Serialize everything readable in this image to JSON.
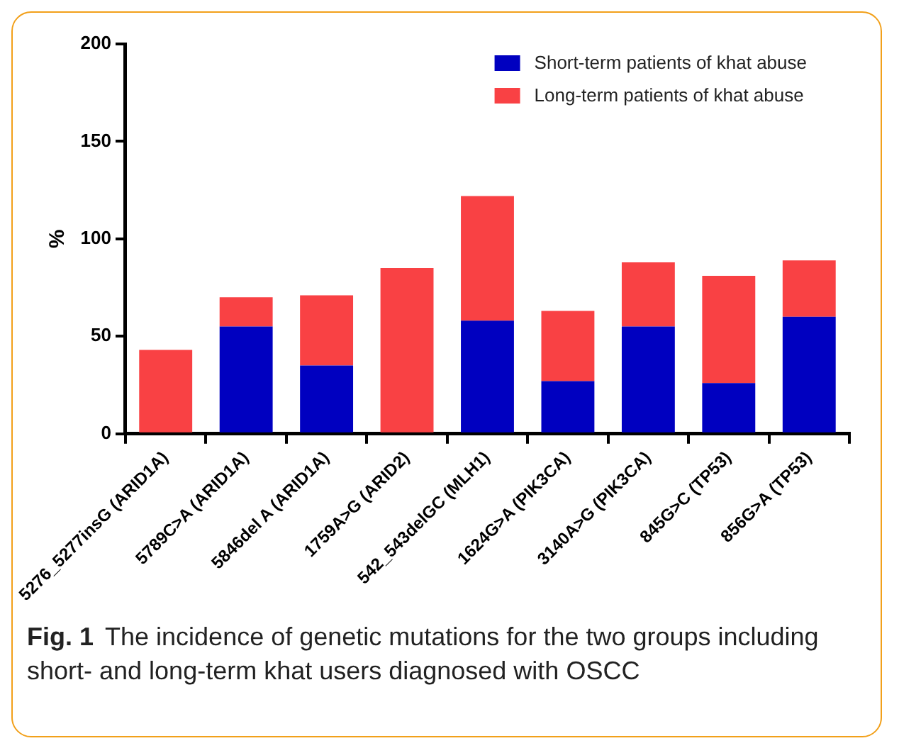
{
  "chart_data": {
    "type": "bar",
    "stacked": true,
    "ylabel": "%",
    "categories": [
      "5276_5277insG (ARID1A)",
      "5789C>A (ARID1A)",
      "5846del A (ARID1A)",
      "1759A>G (ARID2)",
      "542_543delGC (MLH1)",
      "1624G>A (PIK3CA)",
      "3140A>G (PIK3CA)",
      "845G>C (TP53)",
      "856G>A (TP53)"
    ],
    "series": [
      {
        "name": "Short-term patients of khat abuse",
        "color": "#0000c0",
        "values": [
          0,
          55,
          35,
          0,
          58,
          27,
          55,
          26,
          60
        ]
      },
      {
        "name": "Long-term patients of khat abuse",
        "color": "#f94144",
        "values": [
          43,
          15,
          36,
          85,
          64,
          36,
          33,
          55,
          29
        ]
      }
    ],
    "ylim": [
      0,
      200
    ],
    "yticks": [
      0,
      50,
      100,
      150,
      200
    ],
    "grid": false,
    "legend": "top right",
    "annotations": [
      "Fig. 1",
      "The incidence of genetic mutations for the two groups including short- and long-term khat users diagnosed with OSCC"
    ]
  }
}
